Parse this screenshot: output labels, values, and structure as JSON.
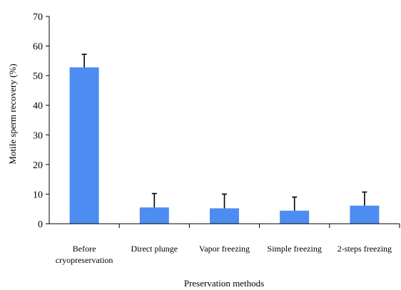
{
  "chart_data": {
    "type": "bar",
    "title": "",
    "xlabel": "Preservation methods",
    "ylabel": "Motile sperm recovery (%)",
    "ylim": [
      0,
      70
    ],
    "yticks": [
      0,
      10,
      20,
      30,
      40,
      50,
      60,
      70
    ],
    "grid": false,
    "legend": "none",
    "categories": [
      [
        "Before",
        "cryopreservation"
      ],
      [
        "Direct plunge"
      ],
      [
        "Vapor freezing"
      ],
      [
        "Simple freezing"
      ],
      [
        "2-steps freezing"
      ]
    ],
    "series": [
      {
        "values": [
          52.8,
          5.5,
          5.2,
          4.4,
          6.1
        ],
        "error_plus": [
          4.4,
          4.7,
          4.8,
          4.6,
          4.6
        ],
        "color": "#4D8CF0"
      }
    ],
    "axis_color": "#000000"
  }
}
